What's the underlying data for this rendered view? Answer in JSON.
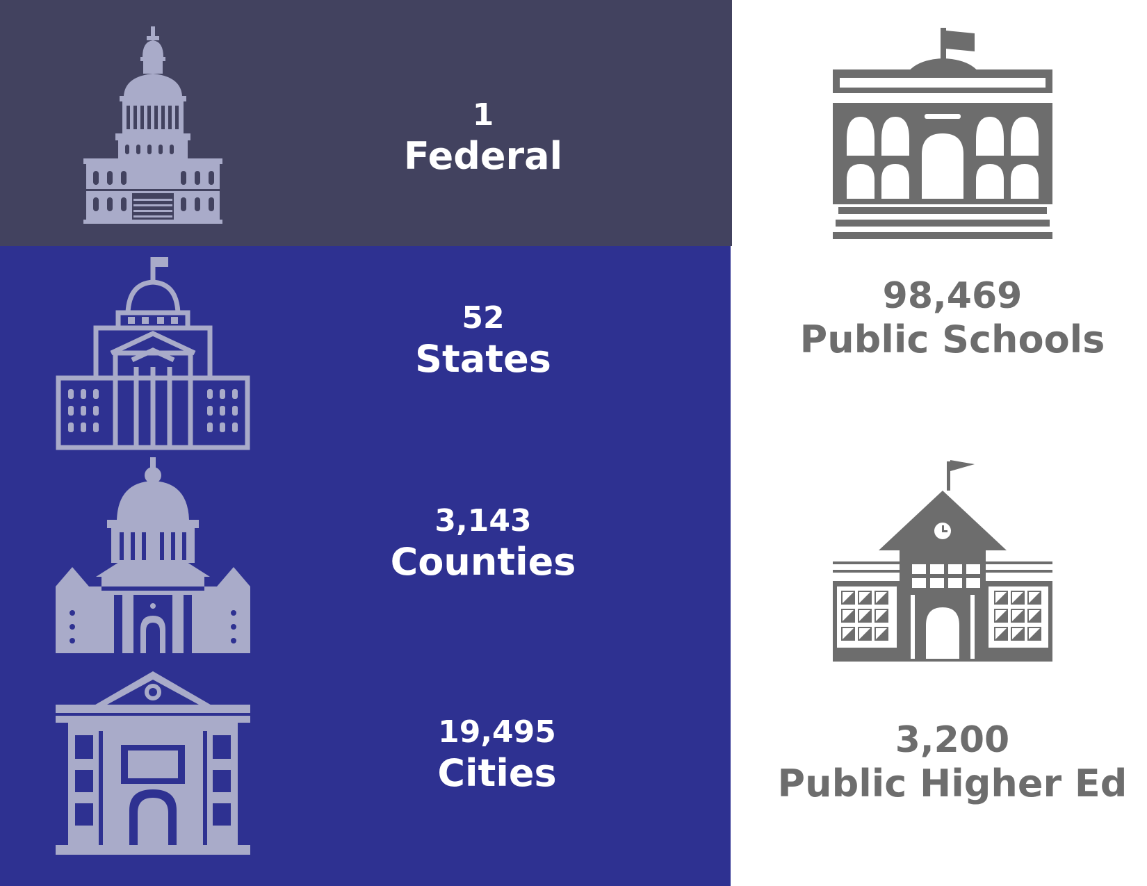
{
  "government": [
    {
      "id": "federal",
      "count": "1",
      "label": "Federal",
      "icon": "capitol-dome-icon"
    },
    {
      "id": "states",
      "count": "52",
      "label": "States",
      "icon": "state-capitol-icon"
    },
    {
      "id": "counties",
      "count": "3,143",
      "label": "Counties",
      "icon": "county-courthouse-icon"
    },
    {
      "id": "cities",
      "count": "19,495",
      "label": "Cities",
      "icon": "city-hall-icon"
    }
  ],
  "education": [
    {
      "id": "public-schools",
      "count": "98,469",
      "label": "Public Schools",
      "icon": "public-school-building-icon"
    },
    {
      "id": "public-higher-ed",
      "count": "3,200",
      "label": "Public Higher Ed",
      "icon": "schoolhouse-icon"
    }
  ],
  "colors": {
    "federal_bg": "#42425f",
    "government_bg": "#2e3191",
    "icon_light": "#a9abc9",
    "education_gray": "#6d6d6d",
    "text_white": "#ffffff"
  }
}
